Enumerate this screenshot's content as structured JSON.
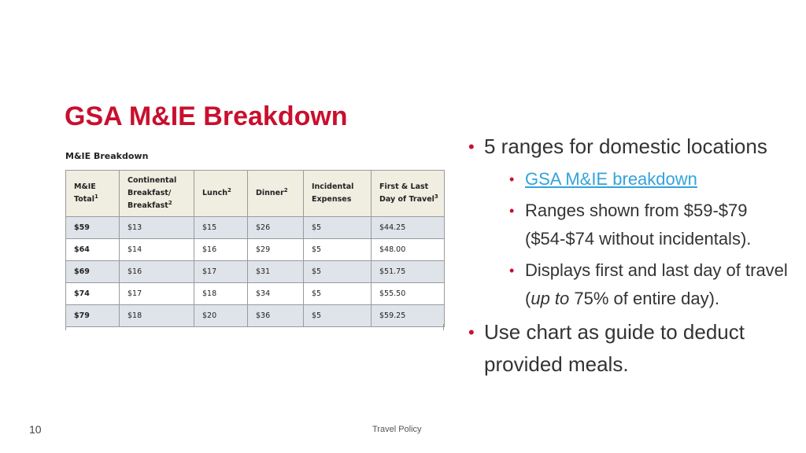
{
  "slide": {
    "title": "GSA M&IE Breakdown",
    "table_caption": "M&IE Breakdown",
    "table": {
      "headers": [
        {
          "lines": [
            "M&IE",
            "Total"
          ],
          "sup": "1"
        },
        {
          "lines": [
            "Continental",
            "Breakfast/",
            "Breakfast"
          ],
          "sup": "2"
        },
        {
          "lines": [
            "Lunch"
          ],
          "sup": "2"
        },
        {
          "lines": [
            "Dinner"
          ],
          "sup": "2"
        },
        {
          "lines": [
            "Incidental",
            "Expenses"
          ],
          "sup": ""
        },
        {
          "lines": [
            "First & Last",
            "Day of Travel"
          ],
          "sup": "3"
        }
      ],
      "rows": [
        [
          "$59",
          "$13",
          "$15",
          "$26",
          "$5",
          "$44.25"
        ],
        [
          "$64",
          "$14",
          "$16",
          "$29",
          "$5",
          "$48.00"
        ],
        [
          "$69",
          "$16",
          "$17",
          "$31",
          "$5",
          "$51.75"
        ],
        [
          "$74",
          "$17",
          "$18",
          "$34",
          "$5",
          "$55.50"
        ],
        [
          "$79",
          "$18",
          "$20",
          "$36",
          "$5",
          "$59.25"
        ]
      ]
    },
    "bullets": [
      {
        "text": "5 ranges for domestic locations",
        "sub": [
          {
            "text": "GSA M&IE breakdown",
            "link": true
          },
          {
            "text": "Ranges shown from $59-$79 ($54-$74 without incidentals).",
            "link": false
          },
          {
            "text_before": "Displays first and last day of travel (",
            "text_italic": "up to",
            "text_after": " 75% of entire day).",
            "link": false
          }
        ]
      },
      {
        "text": "Use chart as guide to deduct provided meals.",
        "sub": []
      }
    ],
    "bullet_glyph": "•",
    "footer": {
      "page_number": "10",
      "center_text": "Travel Policy"
    },
    "colors": {
      "title": "#c8102e",
      "bullet": "#c8102e",
      "link": "#33a3dc",
      "header_bg": "#f0ede1",
      "odd_row_bg": "#dfe4ea"
    }
  }
}
